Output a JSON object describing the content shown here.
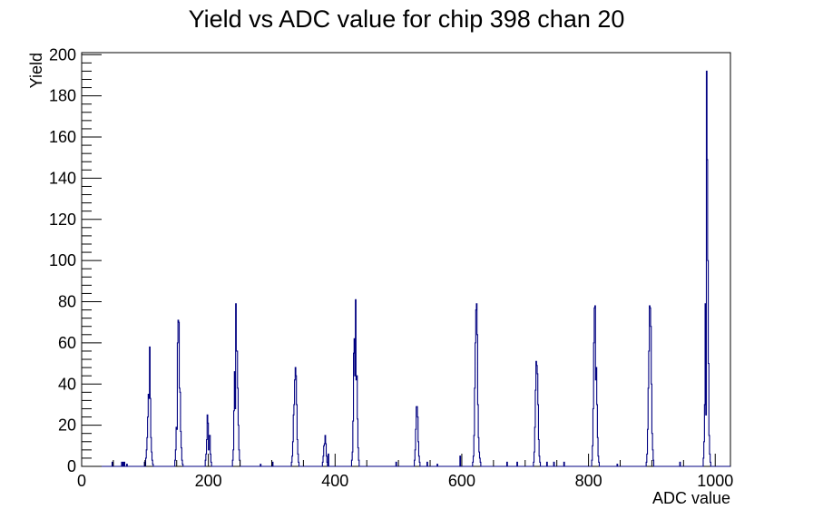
{
  "chart_data": {
    "type": "histogram",
    "title": "Yield vs ADC value for chip 398 chan 20",
    "xlabel": "ADC value",
    "ylabel": "Yield",
    "xlim": [
      0,
      1024
    ],
    "ylim": [
      0,
      201
    ],
    "x_ticks": [
      0,
      200,
      400,
      600,
      800,
      1000
    ],
    "y_ticks": [
      0,
      20,
      40,
      60,
      80,
      100,
      120,
      140,
      160,
      180,
      200
    ],
    "grid": false,
    "legend": "none",
    "line_color": "#000080",
    "bins": [
      [
        48,
        2
      ],
      [
        63,
        2
      ],
      [
        65,
        2
      ],
      [
        67,
        2
      ],
      [
        71,
        1
      ],
      [
        99,
        2
      ],
      [
        101,
        4
      ],
      [
        102,
        8
      ],
      [
        103,
        14
      ],
      [
        104,
        24
      ],
      [
        105,
        35
      ],
      [
        106,
        33
      ],
      [
        107,
        58
      ],
      [
        108,
        33
      ],
      [
        109,
        14
      ],
      [
        110,
        7
      ],
      [
        111,
        3
      ],
      [
        112,
        1
      ],
      [
        147,
        3
      ],
      [
        148,
        8
      ],
      [
        149,
        19
      ],
      [
        150,
        18
      ],
      [
        151,
        60
      ],
      [
        152,
        71
      ],
      [
        153,
        70
      ],
      [
        154,
        38
      ],
      [
        155,
        36
      ],
      [
        156,
        17
      ],
      [
        157,
        9
      ],
      [
        158,
        3
      ],
      [
        159,
        1
      ],
      [
        195,
        3
      ],
      [
        196,
        6
      ],
      [
        197,
        13
      ],
      [
        198,
        25
      ],
      [
        199,
        21
      ],
      [
        200,
        8
      ],
      [
        201,
        15
      ],
      [
        202,
        15
      ],
      [
        203,
        6
      ],
      [
        204,
        2
      ],
      [
        238,
        3
      ],
      [
        239,
        8
      ],
      [
        240,
        27
      ],
      [
        241,
        46
      ],
      [
        242,
        28
      ],
      [
        243,
        79
      ],
      [
        244,
        56
      ],
      [
        245,
        56
      ],
      [
        246,
        38
      ],
      [
        247,
        20
      ],
      [
        248,
        8
      ],
      [
        249,
        3
      ],
      [
        282,
        1
      ],
      [
        301,
        2
      ],
      [
        331,
        2
      ],
      [
        332,
        5
      ],
      [
        333,
        12
      ],
      [
        334,
        25
      ],
      [
        335,
        30
      ],
      [
        336,
        42
      ],
      [
        337,
        48
      ],
      [
        338,
        44
      ],
      [
        339,
        30
      ],
      [
        340,
        13
      ],
      [
        341,
        6
      ],
      [
        342,
        2
      ],
      [
        380,
        2
      ],
      [
        381,
        5
      ],
      [
        382,
        10
      ],
      [
        383,
        11
      ],
      [
        384,
        15
      ],
      [
        385,
        11
      ],
      [
        386,
        5
      ],
      [
        387,
        2
      ],
      [
        389,
        6
      ],
      [
        426,
        3
      ],
      [
        427,
        7
      ],
      [
        428,
        22
      ],
      [
        429,
        55
      ],
      [
        430,
        62
      ],
      [
        431,
        44
      ],
      [
        432,
        81
      ],
      [
        433,
        42
      ],
      [
        434,
        44
      ],
      [
        435,
        23
      ],
      [
        436,
        9
      ],
      [
        437,
        3
      ],
      [
        496,
        2
      ],
      [
        525,
        3
      ],
      [
        526,
        8
      ],
      [
        527,
        18
      ],
      [
        528,
        29
      ],
      [
        529,
        29
      ],
      [
        530,
        24
      ],
      [
        531,
        12
      ],
      [
        532,
        5
      ],
      [
        533,
        2
      ],
      [
        545,
        2
      ],
      [
        561,
        1
      ],
      [
        597,
        5
      ],
      [
        617,
        2
      ],
      [
        618,
        5
      ],
      [
        619,
        15
      ],
      [
        620,
        38
      ],
      [
        621,
        60
      ],
      [
        622,
        76
      ],
      [
        623,
        79
      ],
      [
        624,
        64
      ],
      [
        625,
        30
      ],
      [
        626,
        14
      ],
      [
        627,
        7
      ],
      [
        628,
        4
      ],
      [
        629,
        2
      ],
      [
        671,
        2
      ],
      [
        687,
        2
      ],
      [
        713,
        2
      ],
      [
        714,
        7
      ],
      [
        715,
        19
      ],
      [
        716,
        37
      ],
      [
        717,
        51
      ],
      [
        718,
        49
      ],
      [
        719,
        45
      ],
      [
        720,
        30
      ],
      [
        721,
        13
      ],
      [
        722,
        5
      ],
      [
        723,
        2
      ],
      [
        734,
        2
      ],
      [
        745,
        2
      ],
      [
        761,
        2
      ],
      [
        805,
        3
      ],
      [
        806,
        10
      ],
      [
        807,
        28
      ],
      [
        808,
        60
      ],
      [
        809,
        77
      ],
      [
        810,
        78
      ],
      [
        811,
        42
      ],
      [
        812,
        48
      ],
      [
        813,
        30
      ],
      [
        814,
        14
      ],
      [
        815,
        5
      ],
      [
        816,
        2
      ],
      [
        845,
        1
      ],
      [
        891,
        2
      ],
      [
        892,
        6
      ],
      [
        893,
        18
      ],
      [
        894,
        38
      ],
      [
        895,
        56
      ],
      [
        896,
        78
      ],
      [
        897,
        77
      ],
      [
        898,
        68
      ],
      [
        899,
        40
      ],
      [
        900,
        16
      ],
      [
        901,
        8
      ],
      [
        902,
        3
      ],
      [
        944,
        2
      ],
      [
        981,
        4
      ],
      [
        982,
        12
      ],
      [
        983,
        30
      ],
      [
        984,
        79
      ],
      [
        985,
        25
      ],
      [
        986,
        192
      ],
      [
        987,
        149
      ],
      [
        988,
        100
      ],
      [
        989,
        50
      ],
      [
        990,
        15
      ],
      [
        991,
        6
      ],
      [
        992,
        2
      ]
    ]
  }
}
